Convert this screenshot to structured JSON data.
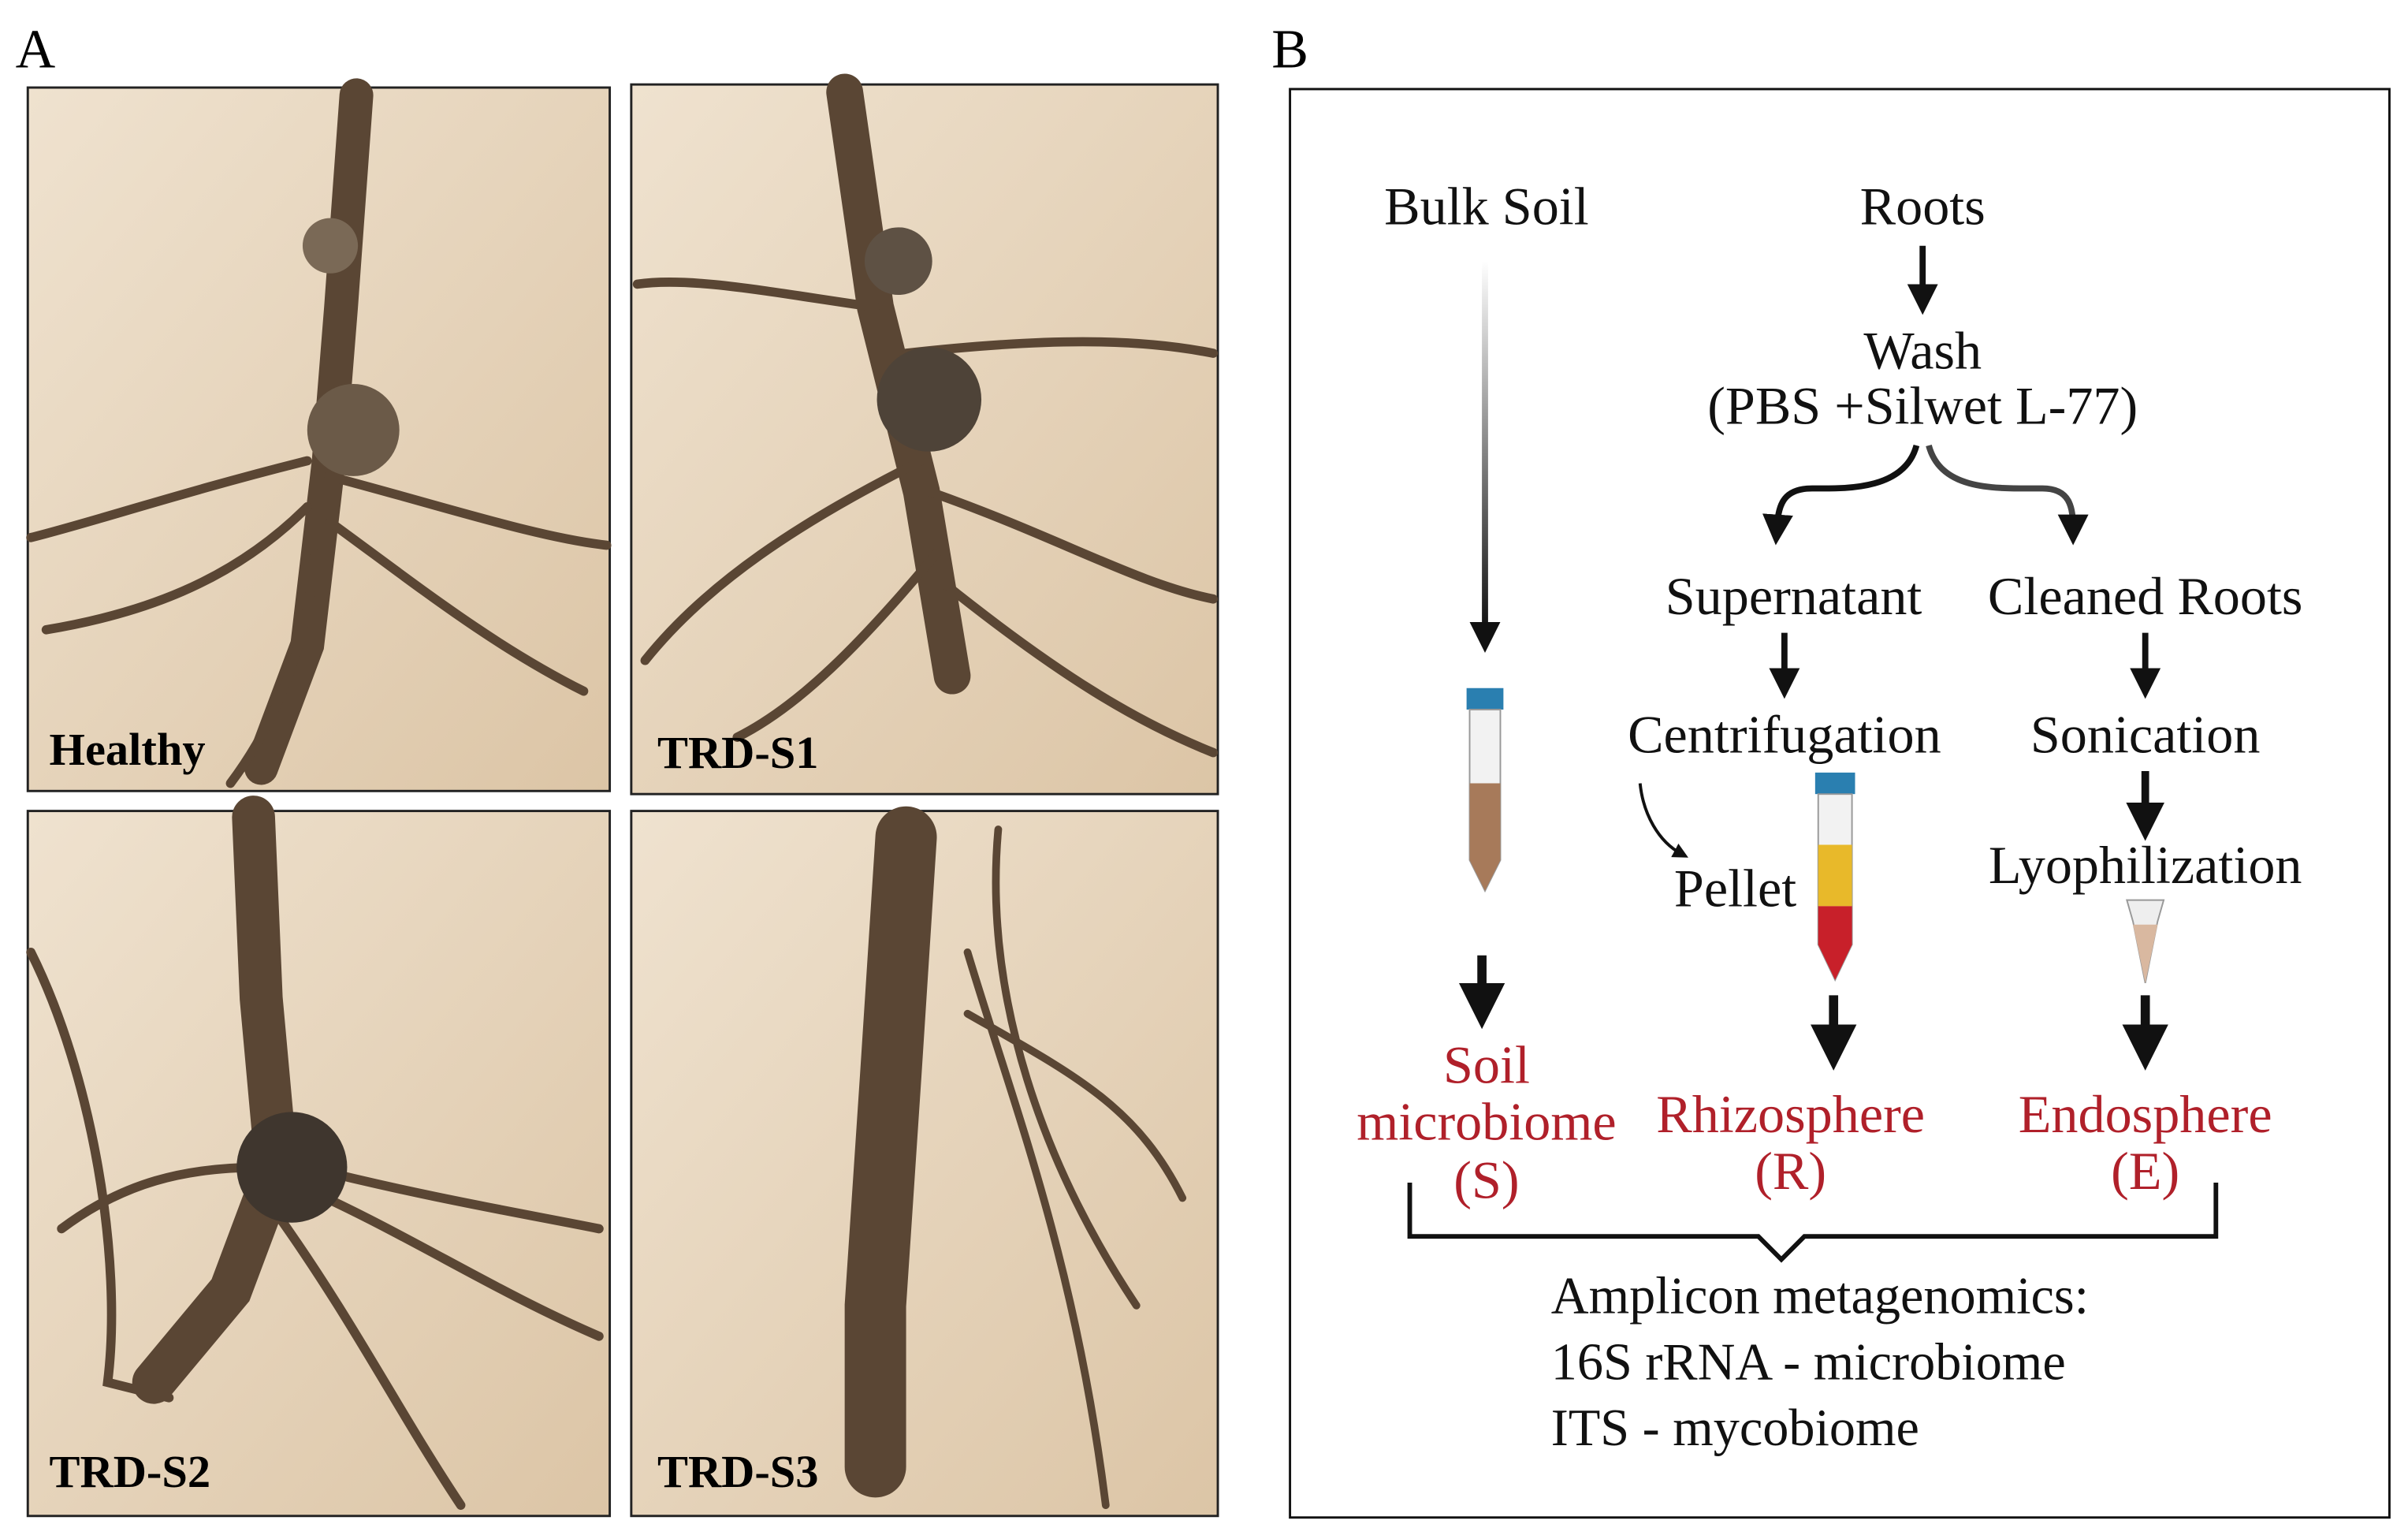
{
  "panels": {
    "a": "A",
    "b": "B"
  },
  "photos": [
    {
      "label": "Healthy"
    },
    {
      "label": "TRD-S1"
    },
    {
      "label": "TRD-S2"
    },
    {
      "label": "TRD-S3"
    }
  ],
  "diagram": {
    "bulk_soil": "Bulk Soil",
    "roots": "Roots",
    "wash": [
      "Wash",
      "(PBS +Silwet L-77)"
    ],
    "supernatant": "Supernatant",
    "cleaned_roots": "Cleaned Roots",
    "centrifugation": "Centrifugation",
    "pellet": "Pellet",
    "sonication": "Sonication",
    "lyophilization": "Lyophilization",
    "outputs": [
      {
        "lines": [
          "Soil",
          "microbiome",
          "(S)"
        ]
      },
      {
        "lines": [
          "Rhizosphere",
          "(R)"
        ]
      },
      {
        "lines": [
          "Endosphere",
          "(E)"
        ]
      }
    ],
    "summary": [
      "Amplicon metagenomics:",
      "16S rRNA - microbiome",
      "ITS - mycobiome"
    ]
  }
}
